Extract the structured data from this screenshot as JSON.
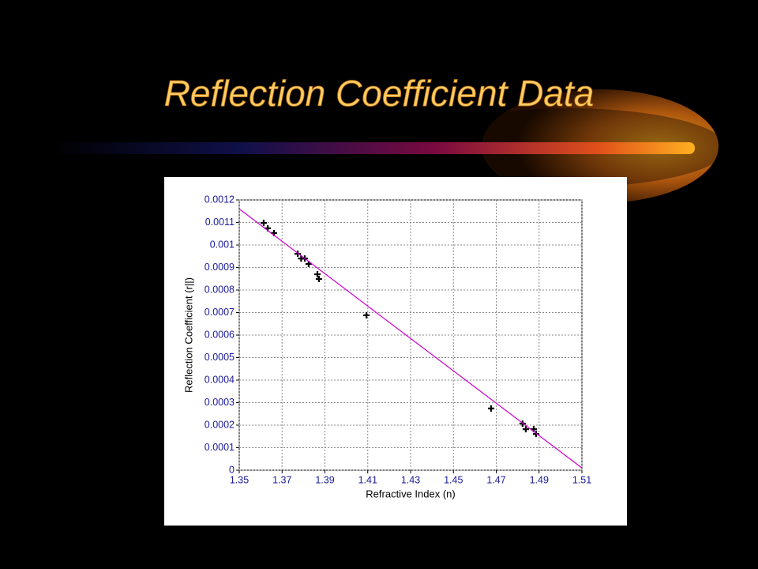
{
  "chart_data": {
    "type": "scatter",
    "title": "Reflection Coefficient Data",
    "x_label": "Refractive Index (n)",
    "y_label": "Reflection Coefficient (r||)",
    "xlim": [
      1.35,
      1.51
    ],
    "xticks": [
      1.35,
      1.37,
      1.39,
      1.41,
      1.43,
      1.45,
      1.47,
      1.49,
      1.51
    ],
    "ylim": [
      0,
      0.0012
    ],
    "yticks": [
      0,
      0.0001,
      0.0002,
      0.0003,
      0.0004,
      0.0005,
      0.0006,
      0.0007,
      0.0008,
      0.0009,
      0.001,
      0.0011,
      0.0012
    ],
    "grid": true,
    "series": [
      {
        "type": "scatter",
        "color": "#000000",
        "x": [
          1.3614,
          1.3633,
          1.3662,
          1.3773,
          1.3789,
          1.3806,
          1.3824,
          1.3865,
          1.3872,
          1.4094,
          1.4676,
          1.4823,
          1.4838,
          1.4875,
          1.4886
        ],
        "values": [
          0.001098,
          0.001074,
          0.001053,
          0.000961,
          0.00094,
          0.00094,
          0.000916,
          0.00087,
          0.000849,
          0.000688,
          0.000274,
          0.000207,
          0.000182,
          0.000182,
          0.000161
        ]
      },
      {
        "type": "line",
        "color": "#cc00cc",
        "x": [
          1.35,
          1.51
        ],
        "values": [
          0.00116,
          1e-05
        ]
      }
    ]
  }
}
